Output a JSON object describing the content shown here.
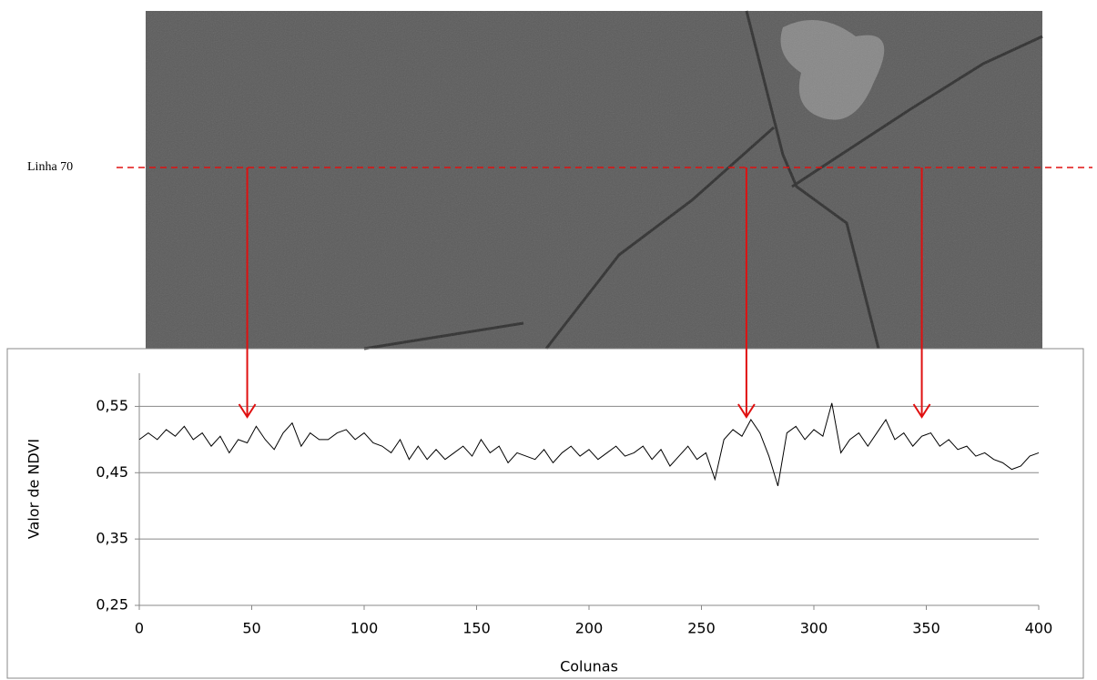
{
  "annotation": "Linha 70",
  "chart_data": {
    "type": "line",
    "x_label": "Colunas",
    "y_label": "Valor de NDVI",
    "x": [
      0,
      4,
      8,
      12,
      16,
      20,
      24,
      28,
      32,
      36,
      40,
      44,
      48,
      52,
      56,
      60,
      64,
      68,
      72,
      76,
      80,
      84,
      88,
      92,
      96,
      100,
      104,
      108,
      112,
      116,
      120,
      124,
      128,
      132,
      136,
      140,
      144,
      148,
      152,
      156,
      160,
      164,
      168,
      172,
      176,
      180,
      184,
      188,
      192,
      196,
      200,
      204,
      208,
      212,
      216,
      220,
      224,
      228,
      232,
      236,
      240,
      244,
      248,
      252,
      256,
      260,
      264,
      268,
      272,
      276,
      280,
      284,
      288,
      292,
      296,
      300,
      304,
      308,
      312,
      316,
      320,
      324,
      328,
      332,
      336,
      340,
      344,
      348,
      352,
      356,
      360,
      364,
      368,
      372,
      376,
      380,
      384,
      388,
      392,
      396,
      400
    ],
    "values": [
      0.5,
      0.51,
      0.5,
      0.515,
      0.505,
      0.52,
      0.5,
      0.51,
      0.49,
      0.505,
      0.48,
      0.5,
      0.495,
      0.52,
      0.5,
      0.485,
      0.51,
      0.525,
      0.49,
      0.51,
      0.5,
      0.5,
      0.51,
      0.515,
      0.5,
      0.51,
      0.495,
      0.49,
      0.48,
      0.5,
      0.47,
      0.49,
      0.47,
      0.485,
      0.47,
      0.48,
      0.49,
      0.475,
      0.5,
      0.48,
      0.49,
      0.465,
      0.48,
      0.475,
      0.47,
      0.485,
      0.465,
      0.48,
      0.49,
      0.475,
      0.485,
      0.47,
      0.48,
      0.49,
      0.475,
      0.48,
      0.49,
      0.47,
      0.485,
      0.46,
      0.475,
      0.49,
      0.47,
      0.48,
      0.44,
      0.5,
      0.515,
      0.505,
      0.53,
      0.51,
      0.475,
      0.43,
      0.51,
      0.52,
      0.5,
      0.515,
      0.505,
      0.555,
      0.48,
      0.5,
      0.51,
      0.49,
      0.51,
      0.53,
      0.5,
      0.51,
      0.49,
      0.505,
      0.51,
      0.49,
      0.5,
      0.485,
      0.49,
      0.475,
      0.48,
      0.47,
      0.465,
      0.455,
      0.46,
      0.475,
      0.48
    ],
    "color": "#000000",
    "xlim": [
      0,
      400
    ],
    "xticks": [
      0,
      50,
      100,
      150,
      200,
      250,
      300,
      350,
      400
    ],
    "ylim": [
      0.25,
      0.6
    ],
    "yticks": [
      {
        "value": 0.25,
        "label": "0,25"
      },
      {
        "value": 0.35,
        "label": "0,35"
      },
      {
        "value": 0.45,
        "label": "0,45"
      },
      {
        "value": 0.55,
        "label": "0,55"
      }
    ],
    "grid": true,
    "marked_columns": [
      48,
      270,
      348
    ],
    "marked_color": "#e01010"
  }
}
